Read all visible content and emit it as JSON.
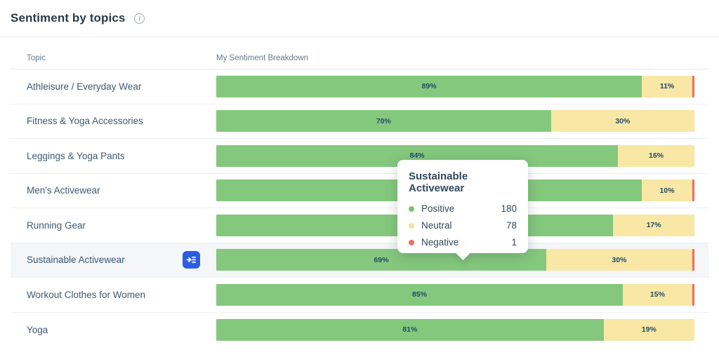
{
  "header": {
    "title": "Sentiment by topics"
  },
  "table": {
    "columns": {
      "topic": "Topic",
      "breakdown": "My Sentiment Breakdown"
    },
    "rows": [
      {
        "topic": "Athleisure / Everyday Wear",
        "positive": {
          "pct": 89,
          "label": "89%"
        },
        "neutral": {
          "pct": 11,
          "label": "11%"
        },
        "negative_sliver": true,
        "highlighted": false,
        "has_button": false
      },
      {
        "topic": "Fitness & Yoga Accessories",
        "positive": {
          "pct": 70,
          "label": "70%"
        },
        "neutral": {
          "pct": 30,
          "label": "30%"
        },
        "negative_sliver": false,
        "highlighted": false,
        "has_button": false
      },
      {
        "topic": "Leggings & Yoga Pants",
        "positive": {
          "pct": 84,
          "label": "84%"
        },
        "neutral": {
          "pct": 16,
          "label": "16%"
        },
        "negative_sliver": false,
        "highlighted": false,
        "has_button": false
      },
      {
        "topic": "Men's Activewear",
        "positive": {
          "pct": 89,
          "label": ""
        },
        "neutral": {
          "pct": 10,
          "label": "10%"
        },
        "negative_sliver": true,
        "highlighted": false,
        "has_button": false
      },
      {
        "topic": "Running Gear",
        "positive": {
          "pct": 83,
          "label": ""
        },
        "neutral": {
          "pct": 17,
          "label": "17%"
        },
        "negative_sliver": false,
        "highlighted": false,
        "has_button": false
      },
      {
        "topic": "Sustainable Activewear",
        "positive": {
          "pct": 69,
          "label": "69%"
        },
        "neutral": {
          "pct": 30,
          "label": "30%"
        },
        "negative_sliver": true,
        "highlighted": true,
        "has_button": true
      },
      {
        "topic": "Workout Clothes for Women",
        "positive": {
          "pct": 85,
          "label": "85%"
        },
        "neutral": {
          "pct": 15,
          "label": "15%"
        },
        "negative_sliver": true,
        "highlighted": false,
        "has_button": false
      },
      {
        "topic": "Yoga",
        "positive": {
          "pct": 81,
          "label": "81%"
        },
        "neutral": {
          "pct": 19,
          "label": "19%"
        },
        "negative_sliver": false,
        "highlighted": false,
        "has_button": false
      }
    ]
  },
  "tooltip": {
    "title": "Sustainable Activewear",
    "rows": [
      {
        "label": "Positive",
        "value": "180",
        "color": "#77c379"
      },
      {
        "label": "Neutral",
        "value": "78",
        "color": "#f5df9e"
      },
      {
        "label": "Negative",
        "value": "1",
        "color": "#f66d5f"
      }
    ]
  },
  "colors": {
    "positive": "#84c87d",
    "neutral": "#f8e7a5",
    "negative": "#f8695e",
    "button_blue": "#2b5de3",
    "row_highlight": "#f4f6f8"
  },
  "chart_data": {
    "type": "bar",
    "orientation": "horizontal",
    "stacked": true,
    "units": "percent",
    "title": "Sentiment by topics",
    "categories": [
      "Athleisure / Everyday Wear",
      "Fitness & Yoga Accessories",
      "Leggings & Yoga Pants",
      "Men's Activewear",
      "Running Gear",
      "Sustainable Activewear",
      "Workout Clothes for Women",
      "Yoga"
    ],
    "series": [
      {
        "name": "Positive",
        "values": [
          89,
          70,
          84,
          null,
          null,
          69,
          85,
          81
        ]
      },
      {
        "name": "Neutral",
        "values": [
          11,
          30,
          16,
          10,
          17,
          30,
          15,
          19
        ]
      },
      {
        "name": "Negative",
        "values": [
          null,
          null,
          null,
          null,
          null,
          null,
          null,
          null
        ]
      }
    ],
    "negative_sliver_shown": [
      true,
      false,
      false,
      true,
      false,
      true,
      true,
      false
    ],
    "tooltip_counts": {
      "topic": "Sustainable Activewear",
      "Positive": 180,
      "Neutral": 78,
      "Negative": 1
    },
    "legend_position": "tooltip-only",
    "grid": false
  }
}
